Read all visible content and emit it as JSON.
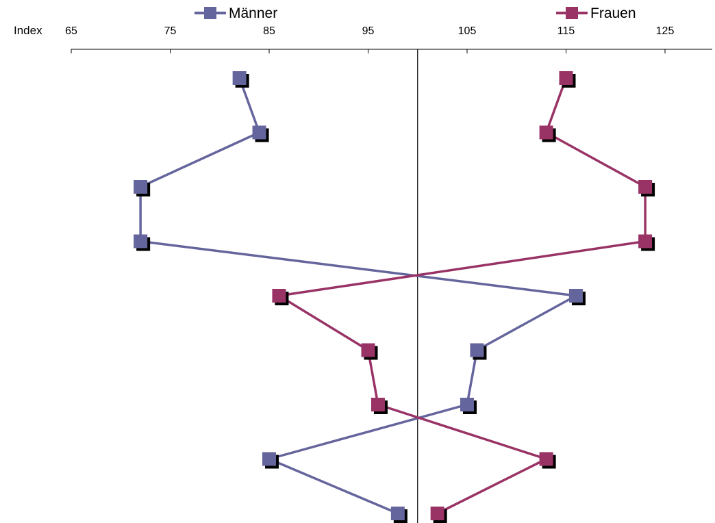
{
  "chart_data": {
    "type": "line",
    "orientation": "vertical-profile",
    "x_axis_title": "Index",
    "x_ticks": [
      65,
      75,
      85,
      95,
      105,
      115,
      125
    ],
    "xlim": [
      65,
      131
    ],
    "reference_value": 100,
    "grid": false,
    "legend_position": "top",
    "series": [
      {
        "name": "Männer",
        "color": "#65659d",
        "values": [
          82,
          84,
          72,
          72,
          116,
          106,
          105,
          85,
          98
        ]
      },
      {
        "name": "Frauen",
        "color": "#993366",
        "values": [
          115,
          113,
          123,
          123,
          86,
          95,
          96,
          113,
          102
        ]
      }
    ]
  }
}
